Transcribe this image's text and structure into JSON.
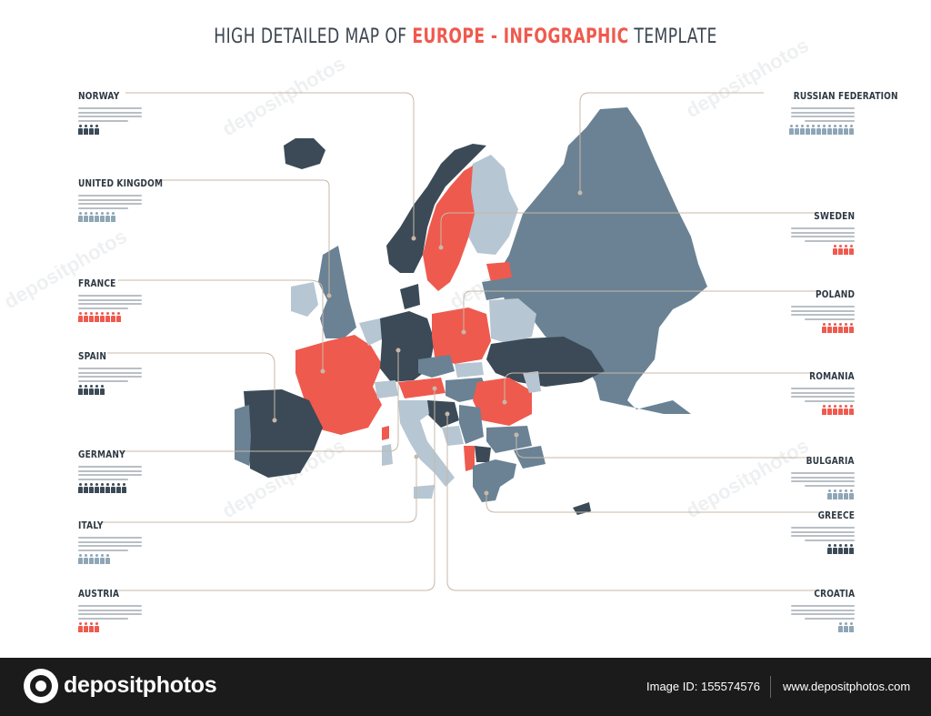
{
  "title": {
    "part1": "HIGH DETAILED MAP OF ",
    "part2": "EUROPE - INFOGRAPHIC",
    "part3": " TEMPLATE"
  },
  "colors": {
    "accent": "#ef5a4e",
    "dark": "#3b4a56",
    "medium": "#6a8294",
    "light": "#b6c6d2",
    "leader": "#c8b8a8",
    "person_dark": "#3b4a56",
    "person_light": "#8ea6b6",
    "person_accent": "#ef5a4e"
  },
  "countries": {
    "norway": "NORWAY",
    "united_kingdom": "UNITED KINGDOM",
    "france": "FRANCE",
    "spain": "SPAIN",
    "germany": "GERMANY",
    "italy": "ITALY",
    "austria": "AUSTRIA",
    "russia": "RUSSIAN FEDERATION",
    "sweden": "SWEDEN",
    "poland": "POLAND",
    "romania": "ROMANIA",
    "bulgaria": "BULGARIA",
    "greece": "GREECE",
    "croatia": "CROATIA"
  },
  "people_counts": {
    "norway": 4,
    "united_kingdom": 7,
    "france": 8,
    "spain": 5,
    "germany": 9,
    "italy": 6,
    "austria": 4,
    "russia": 12,
    "sweden": 4,
    "poland": 6,
    "romania": 6,
    "bulgaria": 5,
    "greece": 5,
    "croatia": 3
  },
  "watermark": "depositphotos",
  "footer": {
    "brand": "depositphotos",
    "image_id": "Image ID: 155574576",
    "site": "www.depositphotos.com"
  }
}
